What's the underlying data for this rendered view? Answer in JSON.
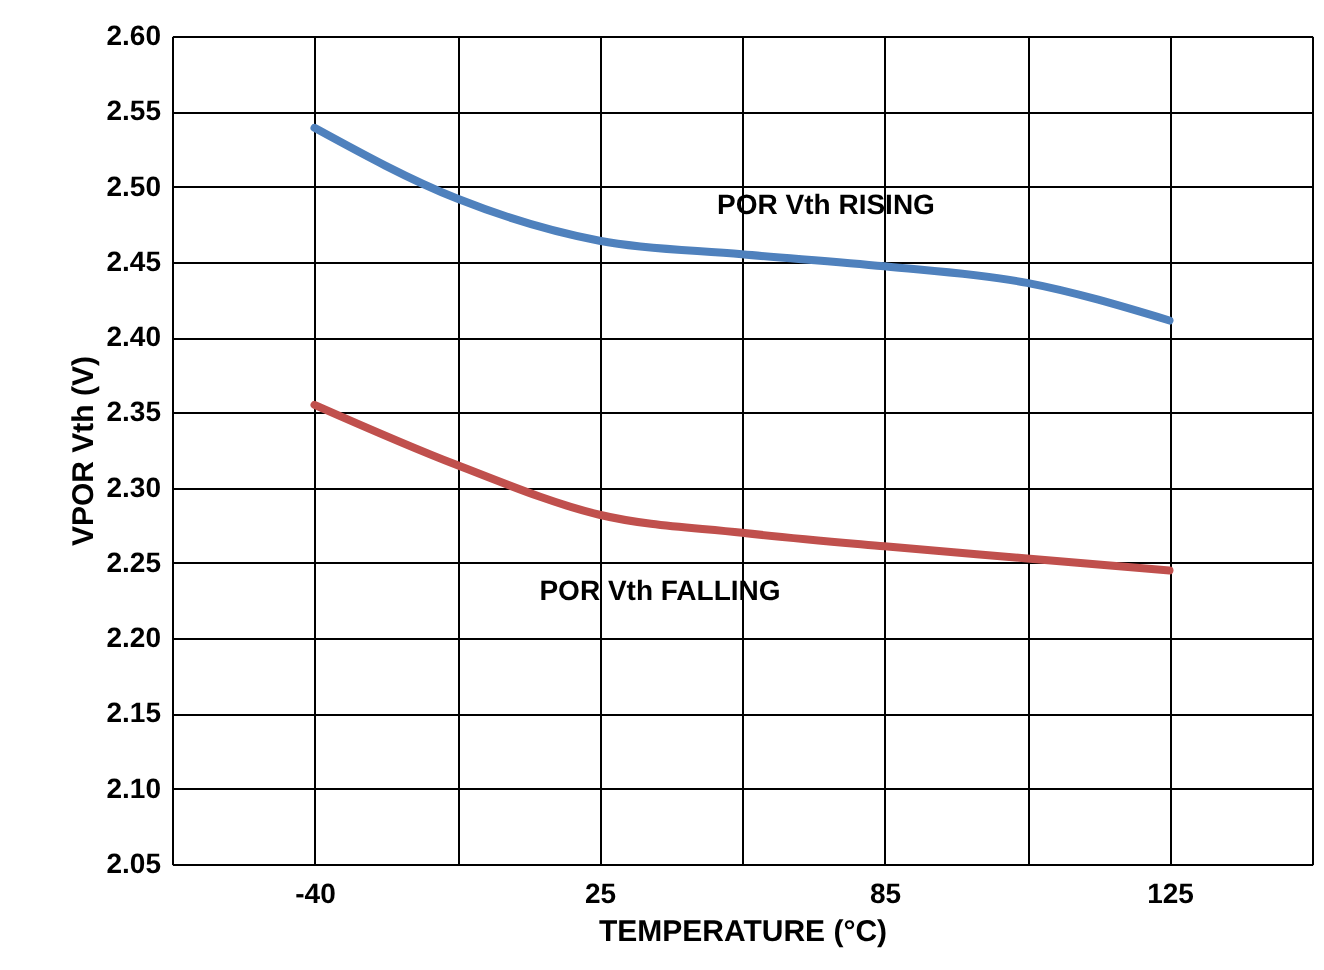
{
  "chart_data": {
    "type": "line",
    "xlabel": "TEMPERATURE (°C)",
    "ylabel": "VPOR Vth (V)",
    "categories": [
      null,
      "-40",
      null,
      "25",
      null,
      "85",
      null,
      "125",
      null
    ],
    "series": [
      {
        "color": "#4f81bd",
        "values": [
          null,
          2.539,
          2.492,
          2.464,
          2.455,
          2.447,
          2.436,
          2.411,
          null
        ]
      },
      {
        "color": "#c0504d",
        "values": [
          null,
          2.355,
          2.315,
          2.282,
          2.27,
          2.261,
          2.253,
          2.245,
          null
        ]
      }
    ],
    "ylim": [
      2.05,
      2.6
    ],
    "yticks": [
      {
        "value": 2.05,
        "label": "2.05"
      },
      {
        "value": 2.1,
        "label": "2.10"
      },
      {
        "value": 2.15,
        "label": "2.15"
      },
      {
        "value": 2.2,
        "label": "2.20"
      },
      {
        "value": 2.25,
        "label": "2.25"
      },
      {
        "value": 2.3,
        "label": "2.30"
      },
      {
        "value": 2.35,
        "label": "2.35"
      },
      {
        "value": 2.4,
        "label": "2.40"
      },
      {
        "value": 2.45,
        "label": "2.45"
      },
      {
        "value": 2.5,
        "label": "2.50"
      },
      {
        "value": 2.55,
        "label": "2.55"
      },
      {
        "value": 2.6,
        "label": "2.60"
      }
    ],
    "annotations": [
      "POR Vth RISING",
      "POR Vth FALLING"
    ],
    "grid": true,
    "marker": "none",
    "line_style": "solid"
  }
}
